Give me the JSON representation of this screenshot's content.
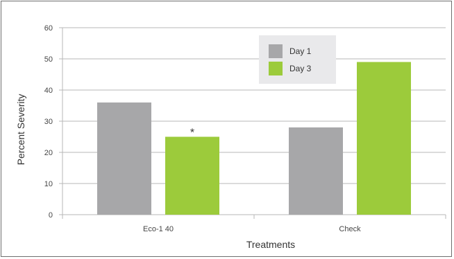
{
  "chart_data": {
    "type": "bar",
    "categories": [
      "Eco-1 40",
      "Check"
    ],
    "series": [
      {
        "name": "Day 1",
        "values": [
          36,
          28
        ],
        "color": "#a7a7a9"
      },
      {
        "name": "Day 3",
        "values": [
          25,
          49
        ],
        "color": "#9ccb3b"
      }
    ],
    "xlabel": "Treatments",
    "ylabel": "Percent Severity",
    "ylim": [
      0,
      60
    ],
    "yticks": [
      0,
      10,
      20,
      30,
      40,
      50,
      60
    ],
    "annotations": [
      {
        "category_index": 0,
        "series_index": 1,
        "text": "*"
      }
    ],
    "legend": {
      "position": "top-center",
      "background": "#e9e9eb"
    },
    "grid": true,
    "gridline_color": "#b7b7b7"
  }
}
